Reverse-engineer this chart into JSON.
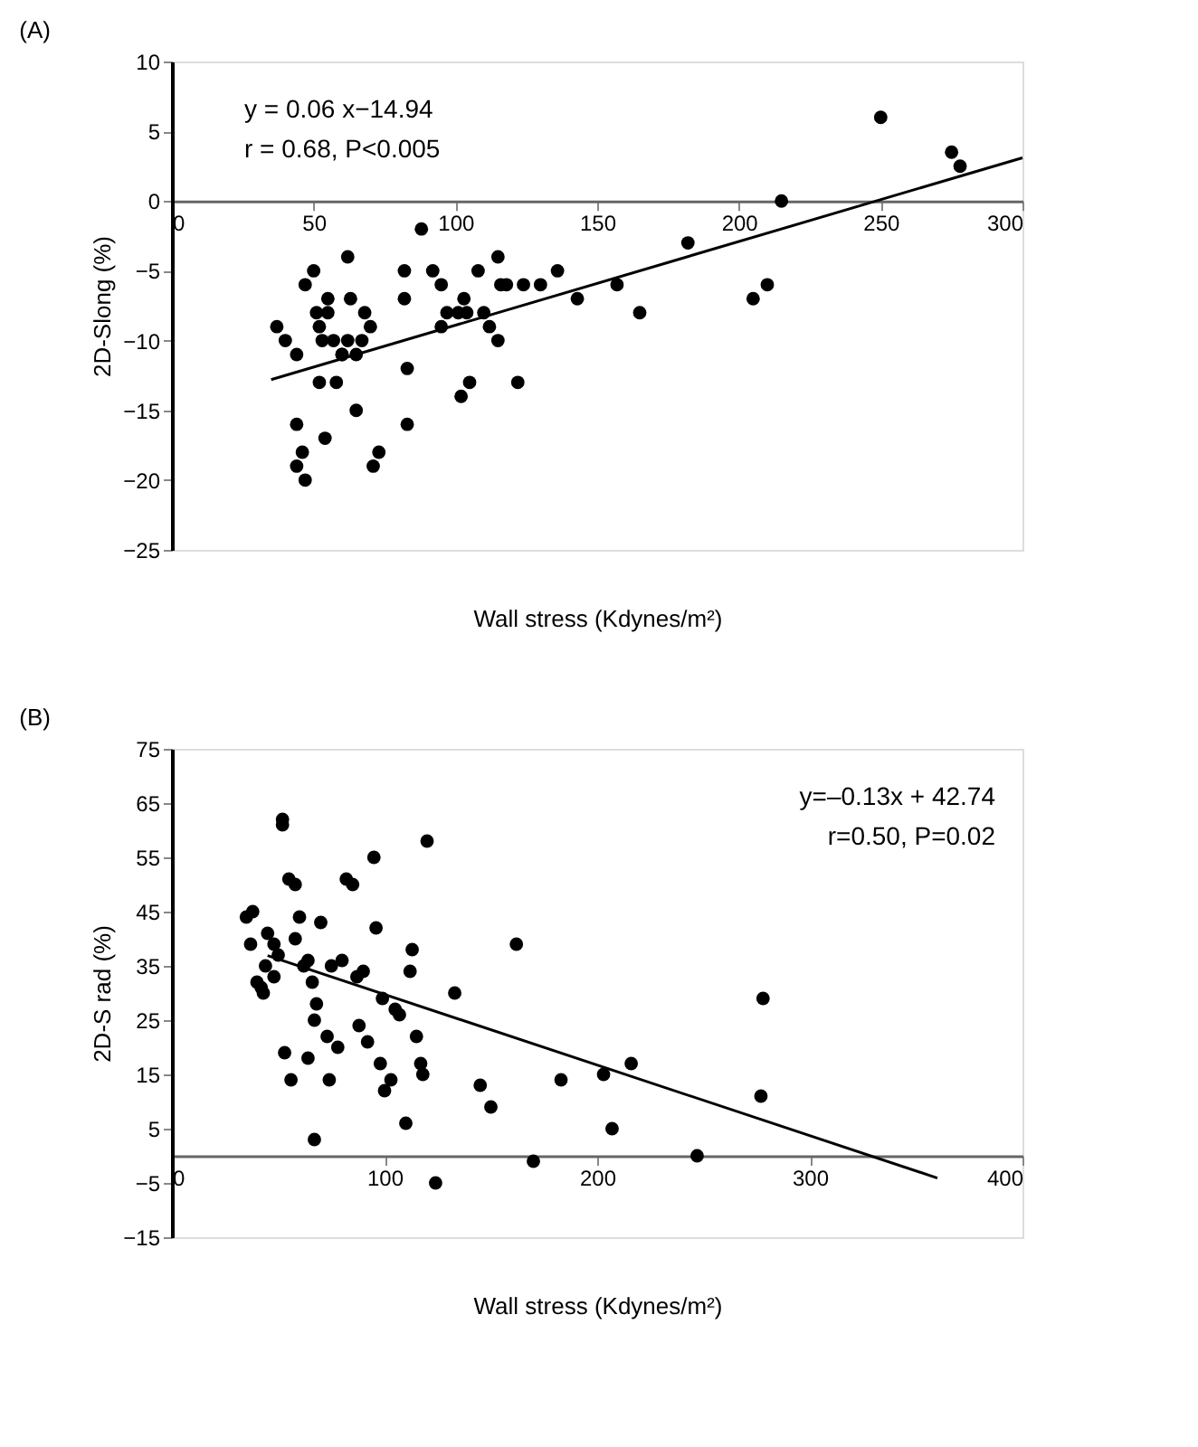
{
  "chart_data": [
    {
      "type": "scatter",
      "title": "(A)",
      "xlabel": "Wall stress (Kdynes/m²)",
      "ylabel": "2D-Slong (%)",
      "xlim": [
        0,
        300
      ],
      "ylim": [
        -25,
        10
      ],
      "xticks": [
        0,
        50,
        100,
        150,
        200,
        250,
        300
      ],
      "yticks": [
        10,
        5,
        0,
        -5,
        -10,
        -15,
        -20,
        -25
      ],
      "grid": false,
      "marker": "circle",
      "annotations": [
        "y = 0.06 x−14.94",
        "r = 0.68, P<0.005"
      ],
      "series": [
        {
          "color": "#000000",
          "x": [
            37,
            40,
            44,
            44,
            44,
            46,
            47,
            47,
            50,
            51,
            52,
            52,
            53,
            54,
            55,
            55,
            57,
            58,
            60,
            60,
            62,
            62,
            63,
            65,
            65,
            67,
            68,
            70,
            71,
            73,
            82,
            82,
            83,
            83,
            88,
            92,
            95,
            95,
            97,
            101,
            102,
            103,
            104,
            105,
            108,
            110,
            112,
            115,
            115,
            116,
            118,
            122,
            124,
            130,
            136,
            143,
            157,
            165,
            182,
            205,
            210,
            215,
            250,
            275,
            278
          ],
          "values": [
            -9,
            -10,
            -11,
            -16,
            -19,
            -18,
            -20,
            -6,
            -5,
            -8,
            -9,
            -13,
            -10,
            -17,
            -8,
            -7,
            -10,
            -13,
            -11,
            -11,
            -4,
            -10,
            -7,
            -15,
            -11,
            -10,
            -8,
            -9,
            -19,
            -18,
            -5,
            -7,
            -12,
            -16,
            -2,
            -5,
            -6,
            -9,
            -8,
            -8,
            -14,
            -7,
            -8,
            -13,
            -5,
            -8,
            -9,
            -4,
            -10,
            -6,
            -6,
            -13,
            -6,
            -6,
            -5,
            -7,
            -6,
            -8,
            -3,
            -7,
            -6,
            0,
            6,
            3.5,
            2.5
          ]
        },
        {
          "type": "line",
          "color": "#000000",
          "marker": "none",
          "line_style": "solid",
          "x": [
            35,
            300
          ],
          "values": [
            -12.8,
            3.1
          ]
        }
      ]
    },
    {
      "type": "scatter",
      "title": "(B)",
      "xlabel": "Wall stress (Kdynes/m²)",
      "ylabel": "2D-S rad (%)",
      "xlim": [
        0,
        400
      ],
      "ylim": [
        -15,
        75
      ],
      "xticks": [
        0,
        100,
        200,
        300,
        400
      ],
      "yticks": [
        -15,
        -5,
        5,
        15,
        25,
        35,
        45,
        55,
        65,
        75
      ],
      "grid": false,
      "marker": "circle",
      "annotations": [
        "y=–0.13x + 42.74",
        "r=0.50, P=0.02"
      ],
      "series": [
        {
          "color": "#000000",
          "x": [
            35,
            38,
            37,
            40,
            42,
            43,
            44,
            45,
            48,
            48,
            50,
            52,
            52,
            53,
            55,
            56,
            58,
            58,
            60,
            62,
            64,
            64,
            66,
            67,
            67,
            68,
            70,
            73,
            74,
            75,
            78,
            80,
            82,
            85,
            87,
            88,
            90,
            92,
            95,
            96,
            98,
            99,
            100,
            103,
            105,
            107,
            110,
            112,
            113,
            115,
            117,
            118,
            120,
            124,
            133,
            145,
            150,
            162,
            170,
            183,
            203,
            207,
            216,
            247,
            278,
            277
          ],
          "values": [
            44,
            45,
            39,
            32,
            31,
            30,
            35,
            41,
            33,
            39,
            37,
            62,
            61,
            19,
            51,
            14,
            50,
            40,
            44,
            35,
            36,
            18,
            32,
            25,
            3,
            28,
            43,
            22,
            14,
            35,
            20,
            36,
            51,
            50,
            33,
            24,
            34,
            21,
            55,
            42,
            17,
            29,
            12,
            14,
            27,
            26,
            6,
            34,
            38,
            22,
            17,
            15,
            58,
            -5,
            30,
            13,
            9,
            39,
            -1,
            14,
            15,
            5,
            17,
            0,
            29,
            11
          ]
        },
        {
          "type": "line",
          "color": "#000000",
          "marker": "none",
          "line_style": "solid",
          "x": [
            45,
            360
          ],
          "values": [
            36.9,
            -4.1
          ]
        }
      ]
    }
  ]
}
